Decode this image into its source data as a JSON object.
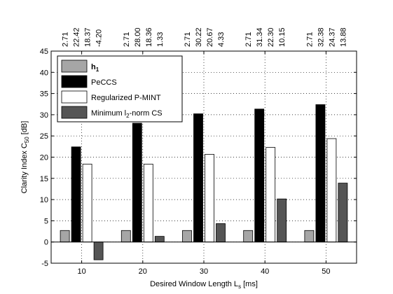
{
  "chart_data": {
    "type": "bar",
    "xlabel": "Desired Window Length L",
    "xlabel_sub": "s",
    "xlabel_tail": " [ms]",
    "ylabel": "Clarity Index C",
    "ylabel_sub": "50",
    "ylabel_tail": " [dB]",
    "ylim": [
      -5,
      45
    ],
    "yticks": [
      -5,
      0,
      5,
      10,
      15,
      20,
      25,
      30,
      35,
      40,
      45
    ],
    "categories": [
      "10",
      "20",
      "30",
      "40",
      "50"
    ],
    "grid": true,
    "legend_position": "top-left",
    "series": [
      {
        "name": "h",
        "name_sub": "1",
        "color": "#a6a6a6",
        "values": [
          2.71,
          2.71,
          2.71,
          2.71,
          2.71
        ]
      },
      {
        "name": "PeCCS",
        "color": "#000000",
        "values": [
          22.42,
          28.0,
          30.22,
          31.34,
          32.38
        ]
      },
      {
        "name": "Regularized P-MINT",
        "color": "#ffffff",
        "values": [
          18.37,
          18.36,
          20.67,
          22.3,
          24.37
        ]
      },
      {
        "name": "Minimum l",
        "name_sub": "2",
        "name_tail": "-norm CS",
        "color": "#555555",
        "values": [
          -4.2,
          1.33,
          4.33,
          10.15,
          13.88
        ]
      }
    ],
    "top_labels": [
      [
        "2.71",
        "22.42",
        "18.37",
        "-4.20"
      ],
      [
        "2.71",
        "28.00",
        "18.36",
        "1.33"
      ],
      [
        "2.71",
        "30.22",
        "20.67",
        "4.33"
      ],
      [
        "2.71",
        "31.34",
        "22.30",
        "10.15"
      ],
      [
        "2.71",
        "32.38",
        "24.37",
        "13.88"
      ]
    ]
  }
}
